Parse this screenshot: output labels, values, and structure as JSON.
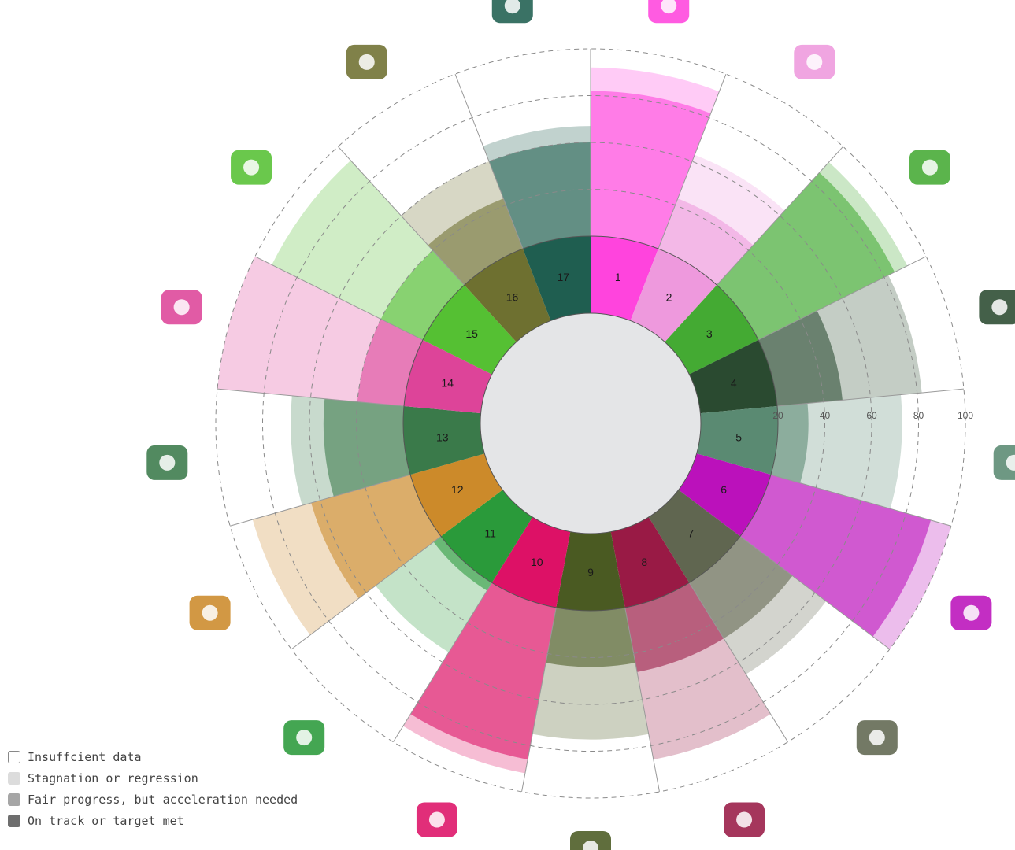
{
  "chart_data": {
    "type": "radial-bar",
    "title": "",
    "radial_axis": {
      "ticks": [
        20,
        40,
        60,
        80,
        100
      ],
      "range": [
        0,
        100
      ]
    },
    "legend": {
      "placement": "bottom-left",
      "items": [
        {
          "label": "Insuffcient data",
          "fill": "#ffffff",
          "stroke": "#888888"
        },
        {
          "label": "Stagnation or regression",
          "fill": "#dcdcdc",
          "stroke": "#dcdcdc"
        },
        {
          "label": "Fair progress, but acceleration needed",
          "fill": "#a6a6a6",
          "stroke": "#a6a6a6"
        },
        {
          "label": "On track or target met",
          "fill": "#6e6e6e",
          "stroke": "#6e6e6e"
        }
      ]
    },
    "categories": [
      {
        "label": "1",
        "icon": "family-icon",
        "color": "#ff44dd",
        "on_track": 20,
        "fair": 82,
        "stagnation": 92,
        "insufficient": 100
      },
      {
        "label": "2",
        "icon": "food-bowl-icon",
        "color": "#ee99dd",
        "on_track": 20,
        "fair": 43,
        "stagnation": 63,
        "insufficient": 100
      },
      {
        "label": "3",
        "icon": "heart-pulse-icon",
        "color": "#44aa33",
        "on_track": 20,
        "fair": 85,
        "stagnation": 91,
        "insufficient": 100
      },
      {
        "label": "4",
        "icon": "education-icon",
        "color": "#2a4a30",
        "on_track": 20,
        "fair": 48,
        "stagnation": 82,
        "insufficient": 100
      },
      {
        "label": "5",
        "icon": "gender-icon",
        "color": "#5a8a72",
        "on_track": 20,
        "fair": 33,
        "stagnation": 73,
        "insufficient": 100
      },
      {
        "label": "6",
        "icon": "water-icon",
        "color": "#bb11bb",
        "on_track": 20,
        "fair": 91,
        "stagnation": 100,
        "insufficient": 100
      },
      {
        "label": "7",
        "icon": "energy-icon",
        "color": "#606650",
        "on_track": 20,
        "fair": 48,
        "stagnation": 66,
        "insufficient": 100
      },
      {
        "label": "8",
        "icon": "growth-icon",
        "color": "#991a45",
        "on_track": 20,
        "fair": 48,
        "stagnation": 86,
        "insufficient": 100
      },
      {
        "label": "9",
        "icon": "industry-icon",
        "color": "#4a5a22",
        "on_track": 20,
        "fair": 44,
        "stagnation": 75,
        "insufficient": 100
      },
      {
        "label": "10",
        "icon": "inequality-icon",
        "color": "#dd1166",
        "on_track": 20,
        "fair": 86,
        "stagnation": 92,
        "insufficient": 100
      },
      {
        "label": "11",
        "icon": "city-icon",
        "color": "#2a9a3a",
        "on_track": 20,
        "fair": 24,
        "stagnation": 55,
        "insufficient": 100
      },
      {
        "label": "12",
        "icon": "infinity-icon",
        "color": "#cc8a2a",
        "on_track": 20,
        "fair": 64,
        "stagnation": 90,
        "insufficient": 100
      },
      {
        "label": "13",
        "icon": "globe-leaf-icon",
        "color": "#3a7a4a",
        "on_track": 20,
        "fair": 54,
        "stagnation": 68,
        "insufficient": 100
      },
      {
        "label": "14",
        "icon": "fish-icon",
        "color": "#dd4499",
        "on_track": 20,
        "fair": 40,
        "stagnation": 100,
        "insufficient": 100
      },
      {
        "label": "15",
        "icon": "tree-icon",
        "color": "#55c033",
        "on_track": 20,
        "fair": 40,
        "stagnation": 92,
        "insufficient": 100
      },
      {
        "label": "16",
        "icon": "justice-dove-icon",
        "color": "#6e7030",
        "on_track": 20,
        "fair": 43,
        "stagnation": 60,
        "insufficient": 100
      },
      {
        "label": "17",
        "icon": "partnership-icon",
        "color": "#1f5e50",
        "on_track": 20,
        "fair": 60,
        "stagnation": 67,
        "insufficient": 100
      }
    ]
  }
}
